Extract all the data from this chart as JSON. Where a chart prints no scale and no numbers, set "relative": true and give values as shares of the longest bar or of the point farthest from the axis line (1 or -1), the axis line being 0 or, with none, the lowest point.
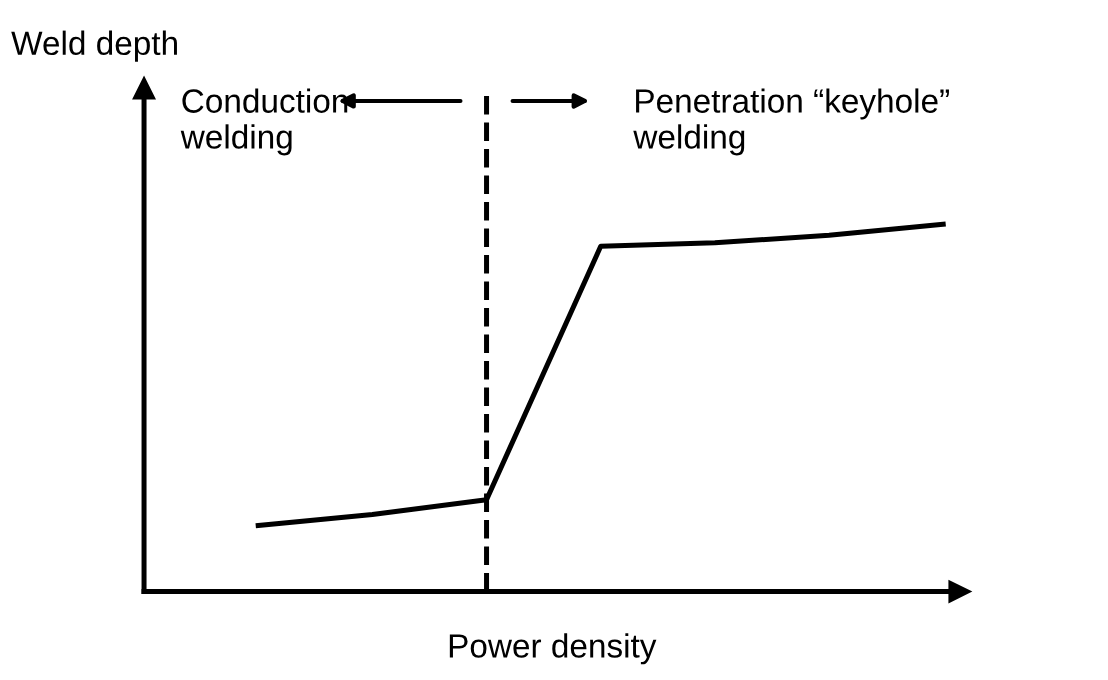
{
  "chart_data": {
    "type": "line",
    "relative": true,
    "xlabel": "Power density",
    "ylabel": "Weld depth",
    "categories": [
      null,
      null,
      null,
      null,
      null,
      null,
      null
    ],
    "marker": "none",
    "line_style": "solid",
    "series": [
      {
        "color": "#000000",
        "values": [
          0.18,
          0.21,
          0.25,
          0.94,
          0.95,
          0.97,
          1.0
        ]
      }
    ],
    "ref_lines": [
      {
        "axis": "x",
        "label": null,
        "color": "#000000",
        "line_style": "dashed"
      }
    ],
    "annotations": [
      "Conduction\nwelding",
      "Penetration “keyhole”\nwelding"
    ]
  }
}
